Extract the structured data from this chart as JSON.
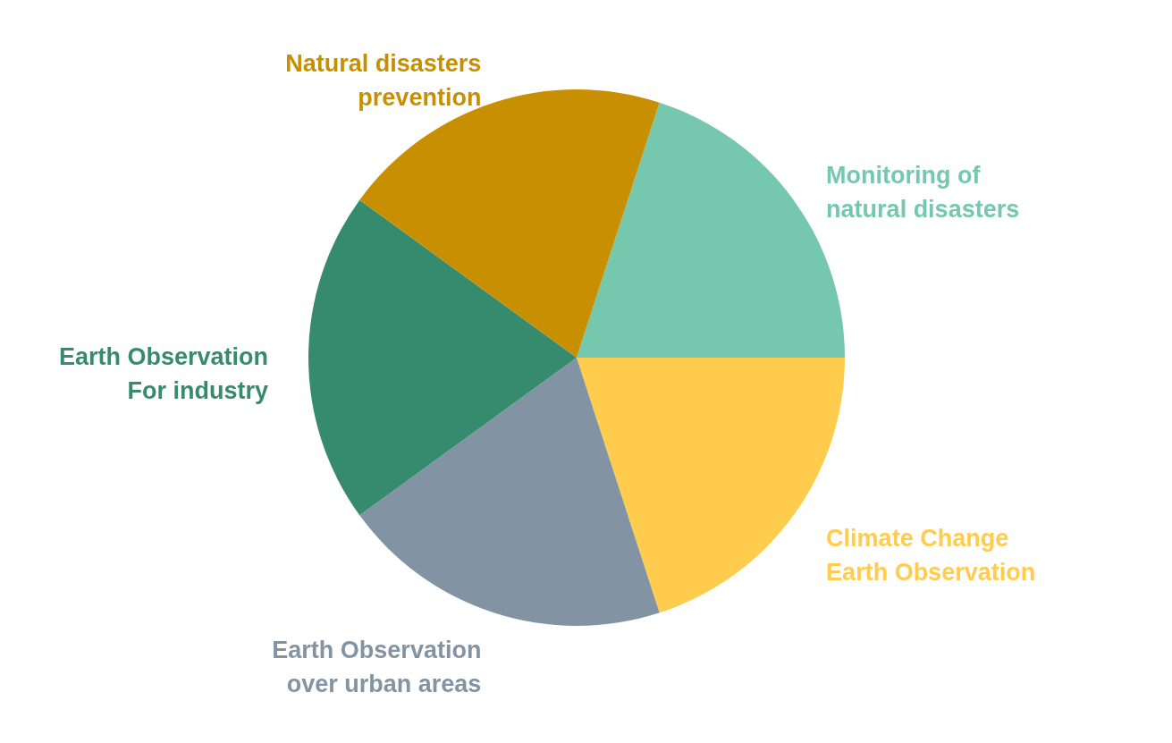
{
  "chart_data": {
    "type": "pie",
    "categories": [
      "Monitoring of natural disasters",
      "Climate Change Earth Observation",
      "Earth Observation over urban areas",
      "Earth Observation For industry",
      "Natural disasters prevention"
    ],
    "values": [
      20,
      20,
      20,
      20,
      20
    ],
    "colors": [
      "#75c8ae",
      "#ffcc4d",
      "#8294a4",
      "#368a6e",
      "#c88f00"
    ],
    "legend": false
  }
}
